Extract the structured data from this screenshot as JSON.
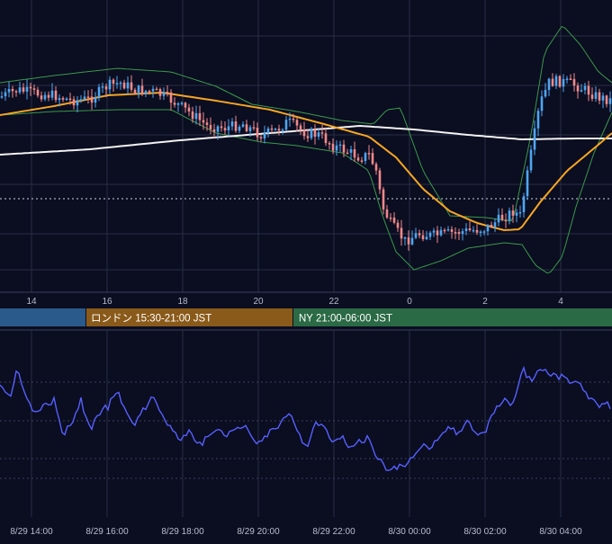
{
  "theme": {
    "background": "#0b0d21",
    "grid": "#2a2e45",
    "grid_dotted": "#3a3f5c",
    "axis_text": "#b8bccb",
    "candle_up": "#4fa6f0",
    "candle_down": "#f08a8a",
    "ma_fast": "#f5a623",
    "ma_slow": "#f2f2f2",
    "bollinger": "#3a9a4a",
    "oscillator": "#5560ff",
    "current_price_line": "#cfd2e0"
  },
  "price_axis": {
    "hour_ticks": [
      "14",
      "16",
      "18",
      "20",
      "22",
      "0",
      "2",
      "4"
    ]
  },
  "sessions": [
    {
      "label": "",
      "color": "#2a5a8c",
      "text_color": "#ffffff"
    },
    {
      "label": "ロンドン 15:30-21:00 JST",
      "color": "#8a5a1a",
      "text_color": "#ffffff"
    },
    {
      "label": "NY 21:00-06:00 JST",
      "color": "#2a6a45",
      "text_color": "#ffffff"
    }
  ],
  "bottom_axis": {
    "date_ticks": [
      "8/29 14:00",
      "8/29 16:00",
      "8/29 18:00",
      "8/29 20:00",
      "8/29 22:00",
      "8/30 00:00",
      "8/30 02:00",
      "8/30 04:00"
    ]
  },
  "chart_data": [
    {
      "type": "candlestick",
      "x_labels": [
        "14",
        "16",
        "18",
        "20",
        "22",
        "0",
        "2",
        "4"
      ],
      "series": [
        {
          "name": "",
          "kind": "candles"
        },
        {
          "name": "",
          "kind": "moving-average-short",
          "color": "#f5a623"
        },
        {
          "name": "",
          "kind": "moving-average-long",
          "color": "#f2f2f2"
        },
        {
          "name": "",
          "kind": "bollinger-bands",
          "color": "#3a9a4a"
        }
      ],
      "grid": true
    },
    {
      "type": "line",
      "x_labels": [
        "8/29 14:00",
        "8/29 16:00",
        "8/29 18:00",
        "8/29 20:00",
        "8/29 22:00",
        "8/30 00:00",
        "8/30 02:00",
        "8/30 04:00"
      ],
      "series": [
        {
          "name": "",
          "color": "#5560ff"
        }
      ],
      "grid": true
    }
  ]
}
